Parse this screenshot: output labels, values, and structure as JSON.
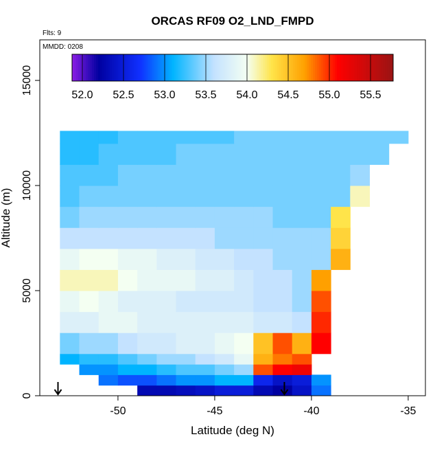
{
  "chart_data": {
    "type": "heatmap",
    "title": "ORCAS RF09 O2_LND_FMPD",
    "annotations": [
      "Flts: 9",
      "MMDD: 0208"
    ],
    "x_label": "Latitude (deg N)",
    "y_label": "Altitude (m)",
    "xlim": [
      -54.04,
      -34.11
    ],
    "ylim": [
      0,
      16930
    ],
    "xticks": [
      -50,
      -45,
      -40,
      -35
    ],
    "yticks": [
      0,
      5000,
      10000,
      15000
    ],
    "xbins": [
      -53,
      -52,
      -51,
      -50,
      -49,
      -48,
      -47,
      -46,
      -45,
      -44,
      -43,
      -42,
      -41,
      -40,
      -39,
      -38,
      -37,
      -36,
      -35
    ],
    "ybins": [
      0,
      500,
      1000,
      1500,
      2000,
      3000,
      4000,
      5000,
      6000,
      7000,
      8000,
      9000,
      10000,
      11000,
      12000,
      12600
    ],
    "values": [
      [
        null,
        null,
        null,
        null,
        52.3,
        52.3,
        52.35,
        52.4,
        52.5,
        52.5,
        52.3,
        52.2,
        52.4,
        52.9,
        null,
        null,
        null,
        null
      ],
      [
        null,
        null,
        52.9,
        52.8,
        52.8,
        52.9,
        53.0,
        53.0,
        53.1,
        53.1,
        52.6,
        52.4,
        52.5,
        53.0,
        null,
        null,
        null,
        null
      ],
      [
        null,
        53.0,
        53.0,
        53.1,
        53.1,
        53.2,
        53.3,
        53.3,
        53.4,
        53.5,
        54.9,
        55.1,
        55.2,
        null,
        null,
        null,
        null,
        null
      ],
      [
        53.1,
        53.2,
        53.2,
        53.3,
        53.4,
        53.5,
        53.5,
        53.6,
        53.7,
        53.9,
        54.6,
        54.8,
        54.9,
        null,
        null,
        null,
        null,
        null
      ],
      [
        53.4,
        53.5,
        53.5,
        53.6,
        53.7,
        53.7,
        53.8,
        53.8,
        53.9,
        54.0,
        54.5,
        54.9,
        54.6,
        55.1,
        null,
        null,
        null,
        null
      ],
      [
        53.8,
        53.8,
        53.9,
        53.9,
        53.8,
        53.8,
        53.8,
        53.8,
        53.8,
        53.8,
        53.7,
        53.7,
        53.6,
        55.0,
        null,
        null,
        null,
        null
      ],
      [
        53.9,
        54.0,
        53.9,
        53.8,
        53.8,
        53.8,
        53.7,
        53.7,
        53.7,
        53.7,
        53.6,
        53.6,
        53.5,
        54.9,
        null,
        null,
        null,
        null
      ],
      [
        54.1,
        54.1,
        54.1,
        54.0,
        53.9,
        53.9,
        53.9,
        53.8,
        53.8,
        53.7,
        53.6,
        53.6,
        53.5,
        54.7,
        null,
        null,
        null,
        null
      ],
      [
        53.9,
        54.0,
        54.0,
        53.9,
        53.9,
        53.8,
        53.8,
        53.7,
        53.7,
        53.6,
        53.6,
        53.5,
        53.5,
        53.5,
        54.6,
        null,
        null,
        null
      ],
      [
        53.6,
        53.6,
        53.6,
        53.6,
        53.6,
        53.6,
        53.6,
        53.6,
        53.5,
        53.5,
        53.5,
        53.5,
        53.5,
        53.5,
        54.4,
        null,
        null,
        null
      ],
      [
        53.4,
        53.5,
        53.5,
        53.5,
        53.5,
        53.5,
        53.5,
        53.5,
        53.5,
        53.5,
        53.5,
        53.4,
        53.4,
        53.4,
        54.3,
        null,
        null,
        null
      ],
      [
        53.3,
        53.4,
        53.4,
        53.4,
        53.4,
        53.4,
        53.4,
        53.4,
        53.4,
        53.4,
        53.4,
        53.4,
        53.4,
        53.4,
        53.4,
        54.1,
        null,
        null
      ],
      [
        53.3,
        53.3,
        53.3,
        53.4,
        53.4,
        53.4,
        53.4,
        53.4,
        53.4,
        53.4,
        53.4,
        53.4,
        53.4,
        53.4,
        53.4,
        53.5,
        null,
        null
      ],
      [
        53.2,
        53.2,
        53.3,
        53.3,
        53.3,
        53.3,
        53.4,
        53.4,
        53.4,
        53.4,
        53.4,
        53.4,
        53.4,
        53.4,
        53.4,
        53.4,
        53.4,
        null
      ],
      [
        53.2,
        53.2,
        53.2,
        53.3,
        53.3,
        53.3,
        53.3,
        53.3,
        53.3,
        53.4,
        53.4,
        53.4,
        53.4,
        53.4,
        53.4,
        53.4,
        53.4,
        53.4
      ]
    ],
    "colorscale": [
      [
        51.875,
        "#8c1ee6"
      ],
      [
        52.2,
        "#0000a0"
      ],
      [
        52.7,
        "#1030ff"
      ],
      [
        53.1,
        "#00b4ff"
      ],
      [
        53.6,
        "#c4e2ff"
      ],
      [
        54.0,
        "#f4fff2"
      ],
      [
        54.3,
        "#ffe44a"
      ],
      [
        54.7,
        "#ffa000"
      ],
      [
        55.1,
        "#ff0000"
      ],
      [
        55.775,
        "#9a1414"
      ]
    ],
    "colorbar_lim": [
      51.875,
      55.775
    ],
    "colorbar_ticks": [
      {
        "value": 52,
        "label": "52.0"
      },
      {
        "value": 52.5,
        "label": "52.5"
      },
      {
        "value": 53,
        "label": "53.0"
      },
      {
        "value": 53.5,
        "label": "53.5"
      },
      {
        "value": 54,
        "label": "54.0"
      },
      {
        "value": 54.5,
        "label": "54.5"
      },
      {
        "value": 55,
        "label": "55.0"
      },
      {
        "value": 55.5,
        "label": "55.5"
      }
    ],
    "arrows_x": [
      -53.1,
      -41.4
    ]
  }
}
